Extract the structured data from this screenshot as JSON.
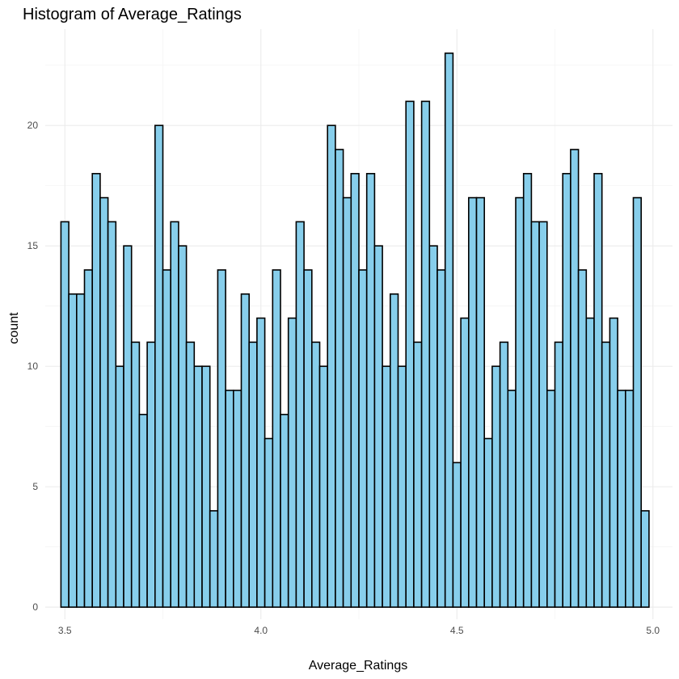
{
  "chart_data": {
    "type": "bar",
    "title": "Histogram of Average_Ratings",
    "xlabel": "Average_Ratings",
    "ylabel": "count",
    "x_ticks": [
      "3.5",
      "4.0",
      "4.5",
      "5.0"
    ],
    "y_ticks": [
      "0",
      "5",
      "10",
      "15",
      "20"
    ],
    "xlim": [
      3.45,
      5.05
    ],
    "ylim": [
      -0.5,
      24
    ],
    "grid": true,
    "legend": "none",
    "bar_fill": "#87ceeb",
    "bar_outline": "#000000",
    "bin_start": 3.5,
    "bin_width": 0.02,
    "values": [
      16,
      13,
      13,
      14,
      18,
      17,
      16,
      10,
      15,
      11,
      8,
      11,
      20,
      14,
      16,
      15,
      11,
      10,
      10,
      4,
      14,
      9,
      9,
      13,
      11,
      12,
      7,
      14,
      8,
      12,
      16,
      14,
      11,
      10,
      20,
      19,
      17,
      18,
      14,
      18,
      15,
      10,
      13,
      10,
      21,
      11,
      21,
      15,
      14,
      23,
      6,
      12,
      17,
      17,
      7,
      10,
      11,
      9,
      17,
      18,
      16,
      16,
      9,
      11,
      18,
      19,
      14,
      12,
      18,
      11,
      12,
      9,
      9,
      17,
      4
    ]
  }
}
